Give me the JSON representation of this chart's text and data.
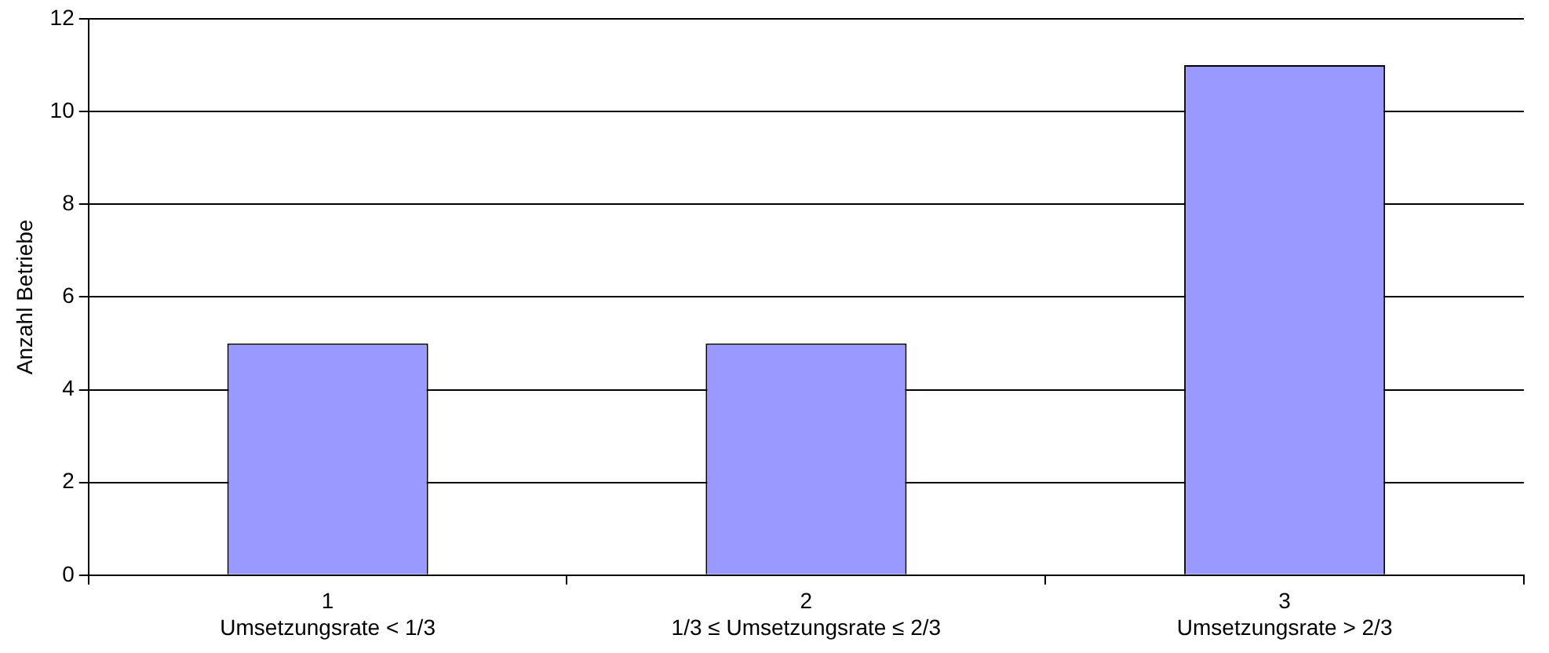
{
  "chart_data": {
    "type": "bar",
    "ylabel": "Anzahl Betriebe",
    "categories": [
      "1\nUmsetzungsrate < 1/3",
      "2\n1/3 ≤ Umsetzungsrate ≤ 2/3",
      "3\nUmsetzungsrate > 2/3"
    ],
    "values": [
      5,
      5,
      11
    ],
    "color": "#9999ff",
    "ylim": [
      0,
      12
    ],
    "yticks": [
      0,
      2,
      4,
      6,
      8,
      10,
      12
    ],
    "grid": "y",
    "legend": false
  }
}
